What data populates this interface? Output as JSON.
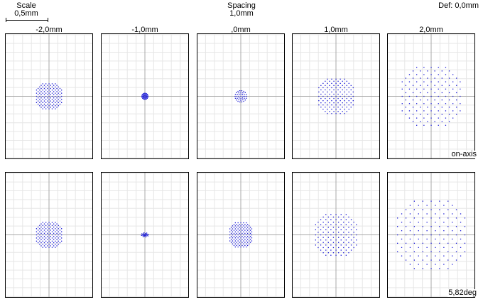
{
  "header": {
    "scale_title": "Scale",
    "scale_value": "0,5mm",
    "spacing_title": "Spacing",
    "spacing_value": "1,0mm",
    "defocus": "Def: 0,0mm"
  },
  "columns": [
    "-2,0mm",
    "-1,0mm",
    ",0mm",
    "1,0mm",
    "2,0mm"
  ],
  "rows": [
    {
      "label": "on-axis"
    },
    {
      "label": "5,82deg"
    }
  ],
  "colors": {
    "grid": "#e6e6e6",
    "axis": "#a8a8a8",
    "frame": "#000000",
    "spot": "#1a1ad6"
  },
  "spots": [
    [
      {
        "shape": "grid-disc",
        "radius": 0.16,
        "aspect": 1.0
      },
      {
        "shape": "rings",
        "radius": 0.035,
        "aspect": 1.0
      },
      {
        "shape": "rings",
        "radius": 0.065,
        "aspect": 1.0
      },
      {
        "shape": "grid-disc",
        "radius": 0.22,
        "aspect": 1.0
      },
      {
        "shape": "grid-disc",
        "radius": 0.37,
        "aspect": 1.0
      }
    ],
    [
      {
        "shape": "grid-disc",
        "radius": 0.16,
        "aspect": 1.0
      },
      {
        "shape": "tight",
        "radius": 0.04,
        "aspect": 0.6
      },
      {
        "shape": "grid-disc",
        "radius": 0.14,
        "aspect": 1.1
      },
      {
        "shape": "grid-disc",
        "radius": 0.26,
        "aspect": 1.0
      },
      {
        "shape": "grid-disc",
        "radius": 0.43,
        "aspect": 1.0
      }
    ]
  ]
}
